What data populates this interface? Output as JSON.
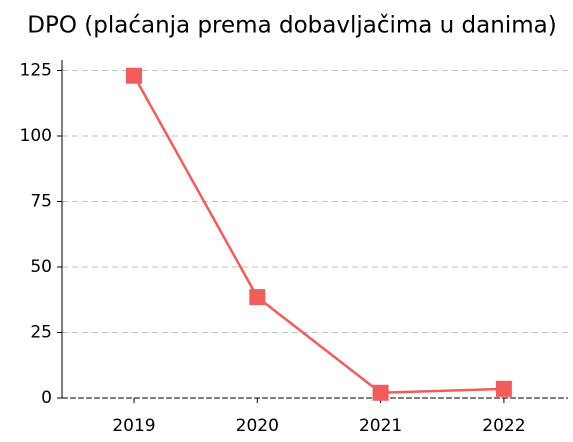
{
  "chart_data": {
    "type": "line",
    "title": "DPO (plaćanja prema dobavljačima u danima)",
    "categories": [
      "2019",
      "2020",
      "2021",
      "2022"
    ],
    "series": [
      {
        "name": "DPO",
        "color": "#f45b5b",
        "values": [
          123,
          38.5,
          2,
          3.5
        ]
      }
    ],
    "ylim": [
      0,
      129
    ],
    "yticks": [
      0,
      25,
      50,
      75,
      100,
      125
    ],
    "grid": true
  }
}
